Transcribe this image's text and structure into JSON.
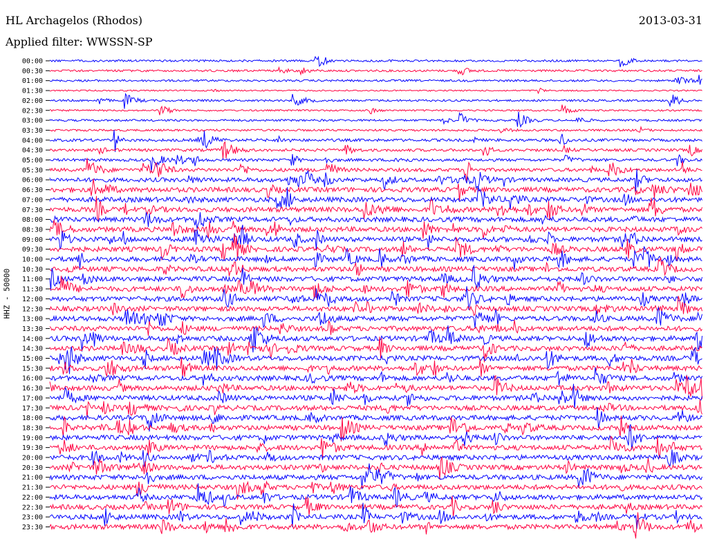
{
  "header": {
    "station": "HL Archagelos (Rhodos)",
    "date": "2013-03-31",
    "filter": "Applied filter: WWSSN-SP"
  },
  "chart_data": {
    "type": "line",
    "title": "HL Archagelos (Rhodos)",
    "ylabel": "HHZ - 50000",
    "row_labels": [
      "00:00",
      "00:30",
      "01:00",
      "01:30",
      "02:00",
      "02:30",
      "03:00",
      "03:30",
      "04:00",
      "04:30",
      "05:00",
      "05:30",
      "06:00",
      "06:30",
      "07:00",
      "07:30",
      "08:00",
      "08:30",
      "09:00",
      "09:30",
      "10:00",
      "10:30",
      "11:00",
      "11:30",
      "12:00",
      "12:30",
      "13:00",
      "13:30",
      "14:00",
      "14:30",
      "15:00",
      "15:30",
      "16:00",
      "16:30",
      "17:00",
      "17:30",
      "18:00",
      "18:30",
      "19:00",
      "19:30",
      "20:00",
      "20:30",
      "21:00",
      "21:30",
      "22:00",
      "22:30",
      "23:00",
      "23:30"
    ],
    "series_colors": [
      "#0000ff",
      "#ff0040"
    ],
    "noise_amplitude": [
      1.5,
      1.5,
      1.5,
      1.0,
      1.5,
      1.2,
      1.5,
      1.5,
      2,
      2,
      2,
      2.5,
      3,
      3.5,
      3.5,
      3.5,
      3.5,
      3.5,
      3.5,
      3.5,
      3.5,
      3.5,
      3.5,
      3.5,
      3.5,
      3.5,
      3.5,
      3.5,
      3.5,
      3.5,
      3.5,
      3.5,
      3.5,
      3.5,
      3.5,
      3.5,
      3.5,
      3.5,
      3.5,
      3.5,
      3.5,
      3.5,
      3.5,
      3.5,
      3.5,
      3.5,
      3.5,
      3.5
    ]
  }
}
